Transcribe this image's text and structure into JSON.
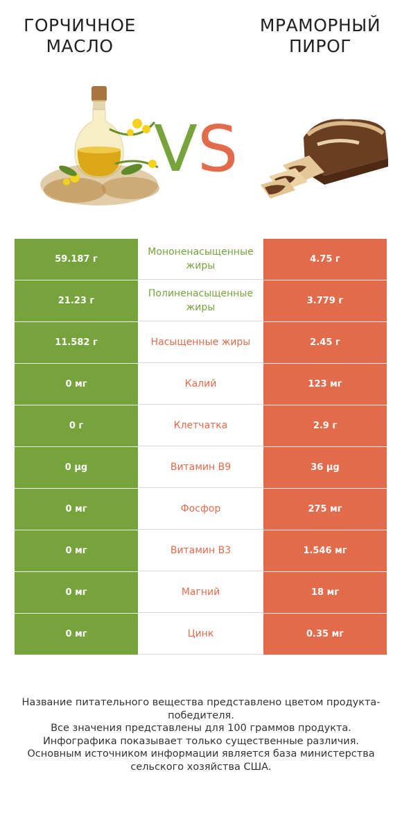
{
  "left_product": "Горчичное масло",
  "right_product": "Мраморный пирог",
  "vs_v": "V",
  "vs_s": "S",
  "colors": {
    "winner_left": "#76a33c",
    "winner_right": "#e26b4b"
  },
  "rows": [
    {
      "left": "59.187 г",
      "nutrient": "Мононенасыщенные жиры",
      "right": "4.75 г",
      "winner": "left"
    },
    {
      "left": "21.23 г",
      "nutrient": "Полиненасыщенные жиры",
      "right": "3.779 г",
      "winner": "left"
    },
    {
      "left": "11.582 г",
      "nutrient": "Насыщенные жиры",
      "right": "2.45 г",
      "winner": "right"
    },
    {
      "left": "0 мг",
      "nutrient": "Калий",
      "right": "123 мг",
      "winner": "right"
    },
    {
      "left": "0 г",
      "nutrient": "Клетчатка",
      "right": "2.9 г",
      "winner": "right"
    },
    {
      "left": "0 µg",
      "nutrient": "Витамин B9",
      "right": "36 µg",
      "winner": "right"
    },
    {
      "left": "0 мг",
      "nutrient": "Фосфор",
      "right": "275 мг",
      "winner": "right"
    },
    {
      "left": "0 мг",
      "nutrient": "Витамин B3",
      "right": "1.546 мг",
      "winner": "right"
    },
    {
      "left": "0 мг",
      "nutrient": "Магний",
      "right": "18 мг",
      "winner": "right"
    },
    {
      "left": "0 мг",
      "nutrient": "Цинк",
      "right": "0.35 мг",
      "winner": "right"
    }
  ],
  "footer": {
    "line1": "Название питательного вещества представлено цветом продукта-победителя.",
    "line2": "Все значения представлены для 100 граммов продукта.",
    "line3": "Инфографика показывает только существенные различия.",
    "line4": "Основным источником информации является база министерства сельского хозяйства США."
  }
}
